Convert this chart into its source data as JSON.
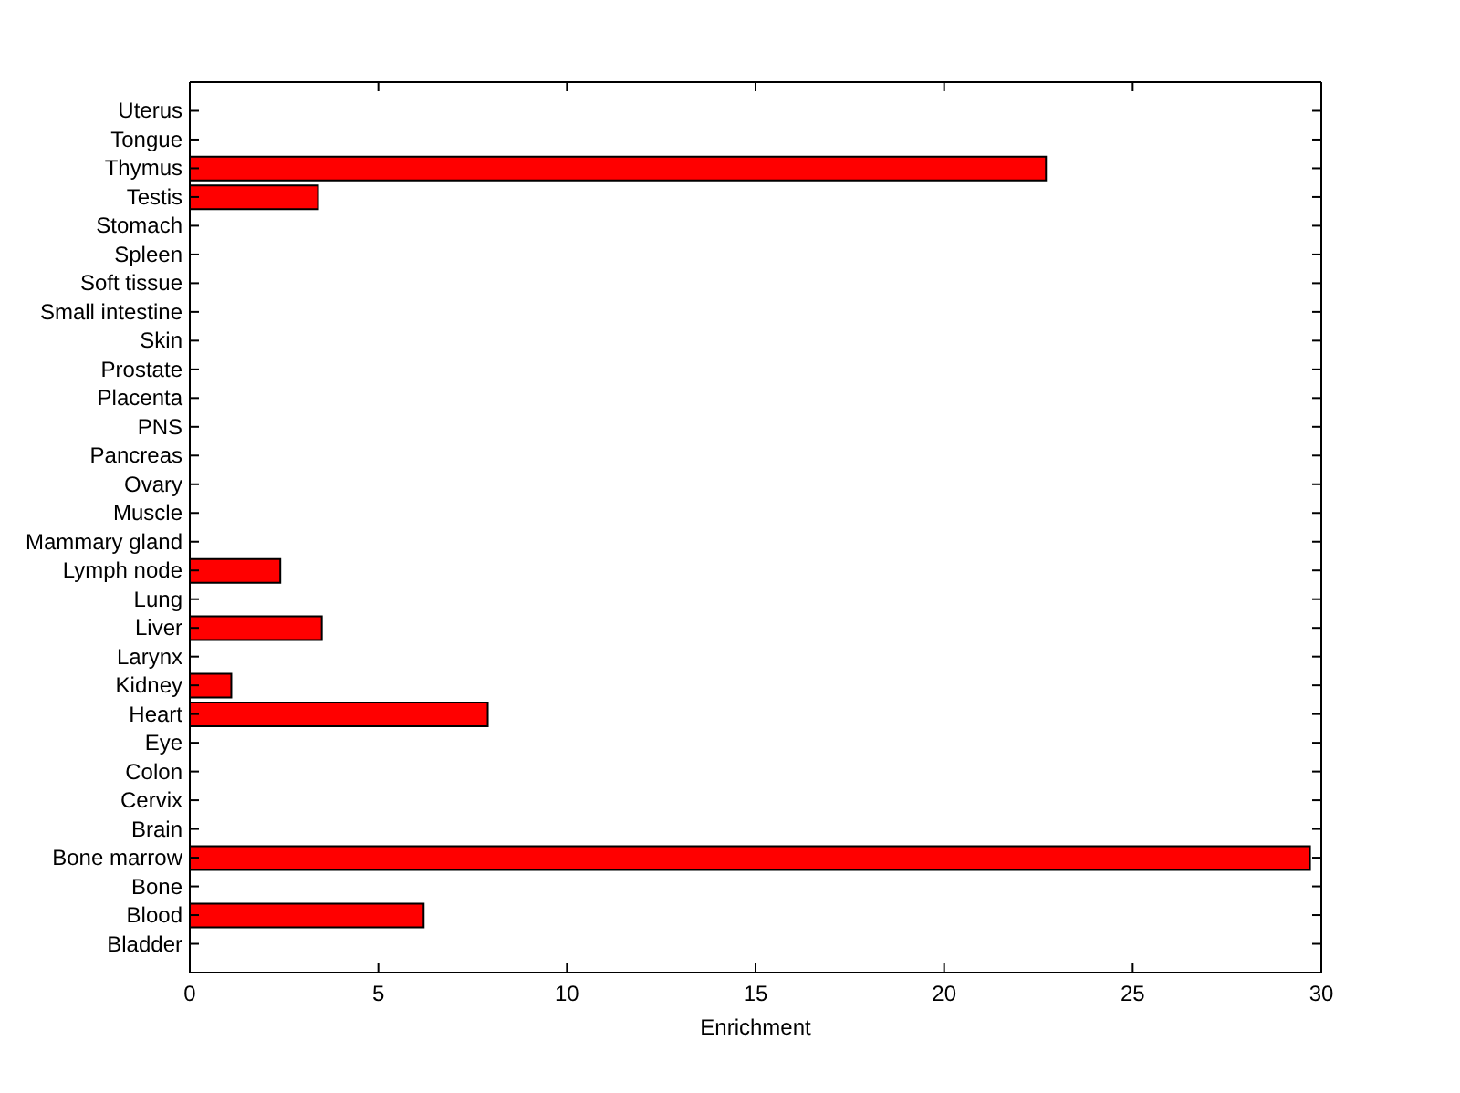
{
  "chart_data": {
    "type": "bar",
    "orientation": "horizontal",
    "xlabel": "Enrichment",
    "categories": [
      "Uterus",
      "Tongue",
      "Thymus",
      "Testis",
      "Stomach",
      "Spleen",
      "Soft tissue",
      "Small intestine",
      "Skin",
      "Prostate",
      "Placenta",
      "PNS",
      "Pancreas",
      "Ovary",
      "Muscle",
      "Mammary gland",
      "Lymph node",
      "Lung",
      "Liver",
      "Larynx",
      "Kidney",
      "Heart",
      "Eye",
      "Colon",
      "Cervix",
      "Brain",
      "Bone marrow",
      "Bone",
      "Blood",
      "Bladder"
    ],
    "values": [
      0,
      0,
      22.7,
      3.4,
      0,
      0,
      0,
      0,
      0,
      0,
      0,
      0,
      0,
      0,
      0,
      0,
      2.4,
      0,
      3.5,
      0,
      1.1,
      7.9,
      0,
      0,
      0,
      0,
      29.7,
      0,
      6.2,
      0
    ],
    "color": "#ff0000",
    "xlim": [
      0,
      30
    ],
    "xticks": [
      0,
      5,
      10,
      15,
      20,
      25,
      30
    ]
  }
}
